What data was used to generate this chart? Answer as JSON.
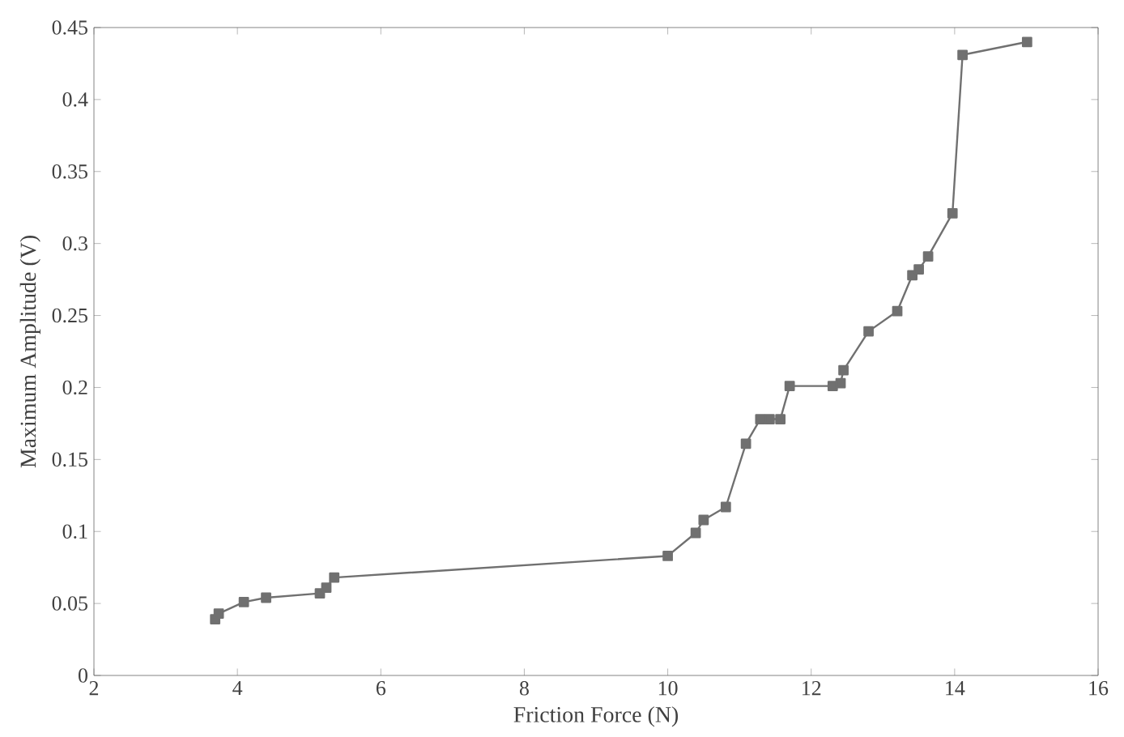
{
  "chart_data": {
    "type": "line",
    "xlabel": "Friction Force (N)",
    "ylabel": "Maximum Amplitude (V)",
    "x": [
      3.69,
      3.74,
      4.09,
      4.4,
      5.15,
      5.24,
      5.35,
      10.0,
      10.39,
      10.5,
      10.81,
      11.09,
      11.29,
      11.42,
      11.57,
      11.7,
      12.3,
      12.41,
      12.45,
      12.8,
      13.2,
      13.41,
      13.5,
      13.63,
      13.97,
      14.11,
      15.01
    ],
    "series": [
      {
        "color": "#707070",
        "values": [
          0.039,
          0.043,
          0.051,
          0.054,
          0.057,
          0.061,
          0.068,
          0.083,
          0.099,
          0.108,
          0.117,
          0.161,
          0.178,
          0.178,
          0.178,
          0.201,
          0.201,
          0.203,
          0.212,
          0.239,
          0.253,
          0.278,
          0.282,
          0.291,
          0.321,
          0.431,
          0.44
        ]
      }
    ],
    "xlim": [
      2,
      16
    ],
    "xticks": [
      2,
      4,
      6,
      8,
      10,
      12,
      14,
      16
    ],
    "ylim": [
      0,
      0.45
    ],
    "yticks": [
      0,
      0.05,
      0.1,
      0.15,
      0.2,
      0.25,
      0.3,
      0.35,
      0.4,
      0.45
    ],
    "marker": "square",
    "line_style": "solid"
  }
}
